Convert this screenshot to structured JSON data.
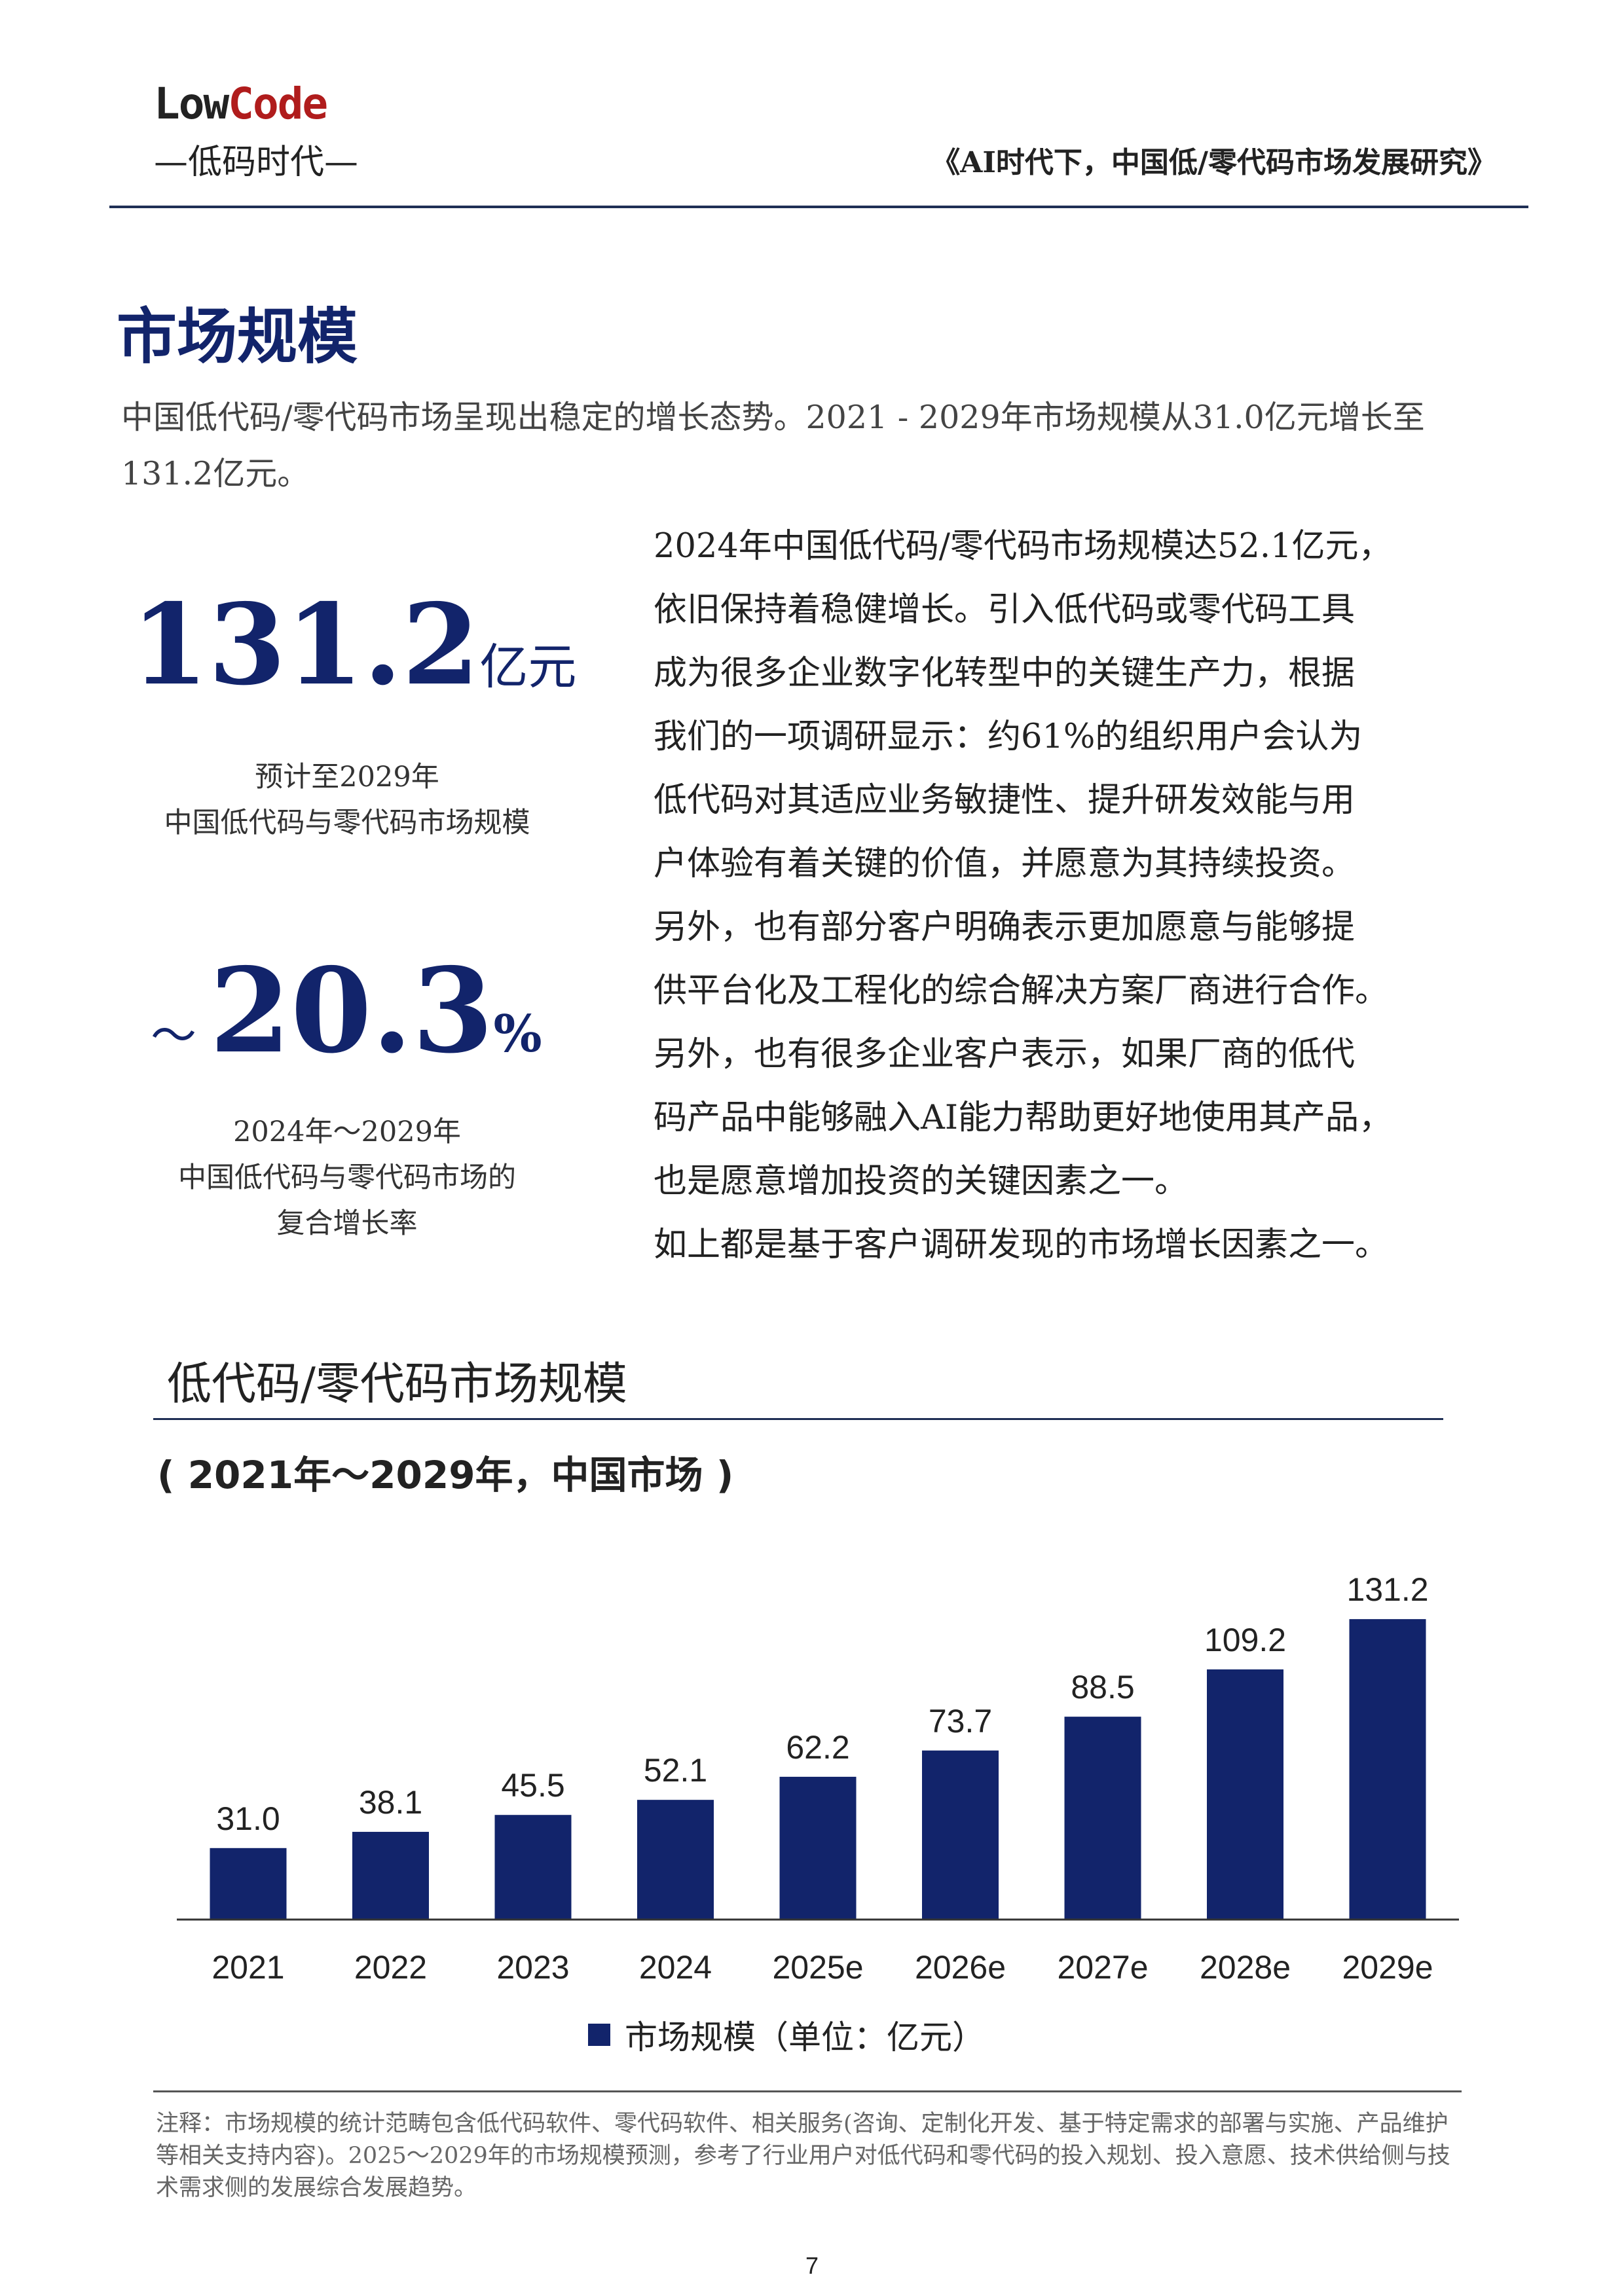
{
  "header": {
    "logo_en_prefix": "Low",
    "logo_en_suffix": "Code",
    "logo_cn": "—低码时代—",
    "title": "《AI时代下，中国低/零代码市场发展研究》"
  },
  "section_title": "市场规模",
  "intro": "中国低代码/零代码市场呈现出稳定的增长态势。2021 - 2029年市场规模从31.0亿元增长至131.2亿元。",
  "stat1": {
    "value": "131.2",
    "unit": "亿元",
    "caption_line1": "预计至2029年",
    "caption_line2": "中国低代码与零代码市场规模"
  },
  "stat2": {
    "prefix": "～",
    "value": "20.3",
    "unit": "%",
    "caption_line1": "2024年～2029年",
    "caption_line2": "中国低代码与零代码市场的",
    "caption_line3": "复合增长率"
  },
  "right_text": [
    "2024年中国低代码/零代码市场规模达52.1亿元，",
    "依旧保持着稳健增长。引入低代码或零代码工具",
    "成为很多企业数字化转型中的关键生产力，根据",
    "我们的一项调研显示：约61%的组织用户会认为",
    "低代码对其适应业务敏捷性、提升研发效能与用",
    "户体验有着关键的价值，并愿意为其持续投资。",
    "另外，也有部分客户明确表示更加愿意与能够提",
    "供平台化及工程化的综合解决方案厂商进行合作。",
    "另外，也有很多企业客户表示，如果厂商的低代",
    "码产品中能够融入AI能力帮助更好地使用其产品，",
    "也是愿意增加投资的关键因素之一。",
    "如上都是基于客户调研发现的市场增长因素之一。"
  ],
  "chart_data": {
    "type": "bar",
    "title": "低代码/零代码市场规模",
    "subtitle": "( 2021年～2029年，中国市场 )",
    "categories": [
      "2021",
      "2022",
      "2023",
      "2024",
      "2025e",
      "2026e",
      "2027e",
      "2028e",
      "2029e"
    ],
    "series": [
      {
        "name": "市场规模（单位：亿元）",
        "values": [
          31.0,
          38.1,
          45.5,
          52.1,
          62.2,
          73.7,
          88.5,
          109.2,
          131.2
        ]
      }
    ],
    "data_labels": [
      "31.0",
      "38.1",
      "45.5",
      "52.1",
      "62.2",
      "73.7",
      "88.5",
      "109.2",
      "131.2"
    ],
    "color": "#12246b",
    "grid": false,
    "legend": "bottom"
  },
  "note": "注释：市场规模的统计范畴包含低代码软件、零代码软件、相关服务(咨询、定制化开发、基于特定需求的部署与实施、产品维护等相关支持内容)。2025～2029年的市场规模预测，参考了行业用户对低代码和零代码的投入规划、投入意愿、技术供给侧与技术需求侧的发展综合发展趋势。",
  "page_number": "7"
}
